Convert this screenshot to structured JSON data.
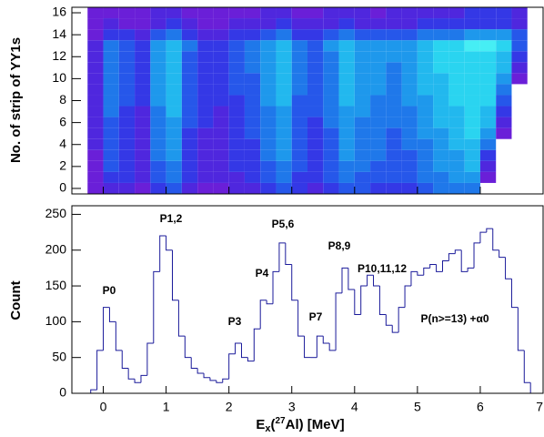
{
  "chart_data": [
    {
      "type": "heatmap",
      "ylabel": "No. of strip of YY1s",
      "xlim": [
        -0.5,
        7
      ],
      "xticks": [
        0,
        1,
        2,
        3,
        4,
        5,
        6,
        7
      ],
      "ylim": [
        -0.5,
        16.5
      ],
      "yticks": [
        0,
        2,
        4,
        6,
        8,
        10,
        12,
        14,
        16
      ],
      "x_bins": [
        -0.5,
        -0.25,
        0,
        0.25,
        0.5,
        0.75,
        1,
        1.25,
        1.5,
        1.75,
        2,
        2.25,
        2.5,
        2.75,
        3,
        3.25,
        3.5,
        3.75,
        4,
        4.25,
        4.5,
        4.75,
        5,
        5.25,
        5.5,
        5.75,
        6,
        6.25,
        6.5,
        6.75,
        7
      ],
      "y": [
        0,
        1,
        2,
        3,
        4,
        5,
        6,
        7,
        8,
        9,
        10,
        11,
        12,
        13,
        14,
        15,
        16
      ],
      "colorscale": [
        "#6a1fd8",
        "#4f27de",
        "#3438e6",
        "#2657ea",
        "#1f78ea",
        "#1e98ec",
        "#22b8ee",
        "#2ad4f0",
        "#46eef4"
      ],
      "z": [
        [
          0,
          1,
          2,
          2,
          1,
          3,
          4,
          2,
          1,
          1,
          2,
          2,
          3,
          4,
          3,
          2,
          3,
          4,
          4,
          3,
          3,
          3,
          4,
          5,
          5,
          5,
          0,
          0,
          0,
          0
        ],
        [
          0,
          1,
          3,
          3,
          2,
          4,
          5,
          3,
          2,
          2,
          2,
          3,
          4,
          5,
          3,
          3,
          4,
          5,
          4,
          4,
          4,
          4,
          5,
          5,
          6,
          6,
          1,
          0,
          0,
          0
        ],
        [
          0,
          1,
          4,
          3,
          2,
          4,
          5,
          3,
          2,
          2,
          3,
          3,
          4,
          5,
          4,
          3,
          4,
          5,
          5,
          4,
          4,
          4,
          5,
          6,
          6,
          7,
          2,
          0,
          0,
          0
        ],
        [
          0,
          1,
          4,
          3,
          2,
          5,
          6,
          3,
          2,
          2,
          3,
          3,
          5,
          6,
          4,
          3,
          4,
          6,
          5,
          5,
          4,
          4,
          5,
          6,
          6,
          7,
          3,
          0,
          0,
          0
        ],
        [
          0,
          2,
          4,
          3,
          2,
          5,
          6,
          3,
          2,
          2,
          3,
          3,
          5,
          6,
          4,
          3,
          4,
          6,
          5,
          5,
          4,
          5,
          5,
          6,
          7,
          7,
          5,
          0,
          0,
          0
        ],
        [
          0,
          2,
          4,
          3,
          2,
          5,
          6,
          3,
          2,
          2,
          3,
          4,
          5,
          6,
          4,
          3,
          4,
          6,
          5,
          5,
          4,
          5,
          6,
          6,
          7,
          8,
          6,
          1,
          0,
          0
        ],
        [
          0,
          2,
          4,
          3,
          2,
          5,
          6,
          4,
          3,
          2,
          3,
          4,
          5,
          6,
          4,
          3,
          5,
          6,
          5,
          5,
          5,
          5,
          6,
          7,
          7,
          8,
          7,
          2,
          0,
          0
        ],
        [
          0,
          2,
          5,
          3,
          2,
          5,
          7,
          4,
          3,
          2,
          3,
          4,
          5,
          6,
          4,
          4,
          5,
          6,
          6,
          5,
          5,
          5,
          6,
          7,
          7,
          8,
          7,
          3,
          0,
          0
        ],
        [
          0,
          2,
          5,
          4,
          3,
          6,
          7,
          4,
          3,
          3,
          3,
          4,
          6,
          7,
          4,
          4,
          5,
          7,
          6,
          5,
          5,
          6,
          6,
          7,
          8,
          8,
          8,
          4,
          0,
          0
        ],
        [
          0,
          2,
          5,
          4,
          3,
          6,
          7,
          4,
          3,
          3,
          4,
          4,
          6,
          7,
          5,
          4,
          5,
          7,
          6,
          6,
          5,
          6,
          7,
          7,
          8,
          8,
          8,
          5,
          0,
          0
        ],
        [
          0,
          2,
          5,
          4,
          3,
          6,
          7,
          4,
          3,
          3,
          4,
          4,
          6,
          7,
          5,
          4,
          5,
          7,
          6,
          6,
          5,
          6,
          7,
          7,
          8,
          8,
          8,
          6,
          1,
          0
        ],
        [
          0,
          2,
          5,
          4,
          3,
          6,
          7,
          4,
          3,
          3,
          4,
          5,
          6,
          7,
          5,
          4,
          5,
          7,
          6,
          6,
          5,
          6,
          7,
          8,
          8,
          8,
          8,
          7,
          2,
          0
        ],
        [
          0,
          2,
          5,
          4,
          3,
          6,
          7,
          4,
          3,
          3,
          4,
          5,
          6,
          7,
          5,
          4,
          5,
          7,
          6,
          6,
          6,
          6,
          7,
          8,
          8,
          8,
          8,
          7,
          3,
          0
        ],
        [
          0,
          2,
          5,
          4,
          3,
          6,
          7,
          5,
          3,
          3,
          4,
          5,
          6,
          7,
          5,
          4,
          6,
          7,
          6,
          6,
          6,
          6,
          7,
          8,
          8,
          9,
          9,
          8,
          4,
          0
        ],
        [
          0,
          1,
          3,
          3,
          2,
          4,
          5,
          3,
          2,
          2,
          3,
          3,
          4,
          5,
          3,
          3,
          4,
          5,
          4,
          4,
          4,
          4,
          5,
          5,
          5,
          6,
          6,
          6,
          4,
          0
        ],
        [
          0,
          1,
          2,
          1,
          1,
          2,
          3,
          2,
          1,
          1,
          2,
          2,
          2,
          3,
          2,
          2,
          2,
          3,
          2,
          2,
          2,
          2,
          3,
          3,
          3,
          3,
          3,
          3,
          2,
          0
        ],
        [
          0,
          1,
          1,
          1,
          1,
          2,
          2,
          1,
          1,
          1,
          1,
          1,
          2,
          2,
          1,
          1,
          2,
          2,
          2,
          1,
          2,
          2,
          2,
          2,
          2,
          3,
          3,
          3,
          2,
          0
        ]
      ]
    },
    {
      "type": "histogram",
      "ylabel": "Count",
      "xlabel_parts": [
        "E",
        "x",
        "(",
        "27",
        "Al) [MeV]"
      ],
      "color": "#1a1a9a",
      "annotation_color": "#e01010",
      "annotations": [
        "P0",
        "P1,2",
        "P3",
        "P4",
        "P5,6",
        "P7",
        "P8,9",
        "P10,11,12",
        "P(n>=13) +α0"
      ],
      "xlim": [
        -0.5,
        7
      ],
      "xticks": [
        0,
        1,
        2,
        3,
        4,
        5,
        6,
        7
      ],
      "ylim": [
        0,
        262
      ],
      "yticks": [
        0,
        50,
        100,
        150,
        200,
        250
      ],
      "bins": [
        -0.5,
        -0.4,
        -0.3,
        -0.2,
        -0.1,
        0,
        0.1,
        0.2,
        0.3,
        0.4,
        0.5,
        0.6,
        0.7,
        0.8,
        0.9,
        1,
        1.1,
        1.2,
        1.3,
        1.4,
        1.5,
        1.6,
        1.7,
        1.8,
        1.9,
        2,
        2.1,
        2.2,
        2.3,
        2.4,
        2.5,
        2.6,
        2.7,
        2.8,
        2.9,
        3,
        3.1,
        3.2,
        3.3,
        3.4,
        3.5,
        3.6,
        3.7,
        3.8,
        3.9,
        4,
        4.1,
        4.2,
        4.3,
        4.4,
        4.5,
        4.6,
        4.7,
        4.8,
        4.9,
        5,
        5.1,
        5.2,
        5.3,
        5.4,
        5.5,
        5.6,
        5.7,
        5.8,
        5.9,
        6,
        6.1,
        6.2,
        6.3,
        6.4,
        6.5,
        6.6,
        6.7,
        6.8,
        6.9,
        7
      ],
      "values": [
        0,
        0,
        0,
        5,
        60,
        120,
        100,
        60,
        35,
        20,
        15,
        25,
        70,
        170,
        220,
        200,
        130,
        80,
        50,
        35,
        28,
        22,
        18,
        15,
        20,
        55,
        70,
        50,
        45,
        90,
        130,
        125,
        170,
        210,
        180,
        130,
        80,
        50,
        50,
        80,
        70,
        60,
        140,
        175,
        145,
        110,
        150,
        165,
        150,
        110,
        95,
        85,
        120,
        150,
        170,
        165,
        175,
        180,
        170,
        185,
        195,
        200,
        170,
        175,
        210,
        225,
        230,
        200,
        190,
        160,
        120,
        60,
        15,
        0,
        0
      ]
    }
  ]
}
